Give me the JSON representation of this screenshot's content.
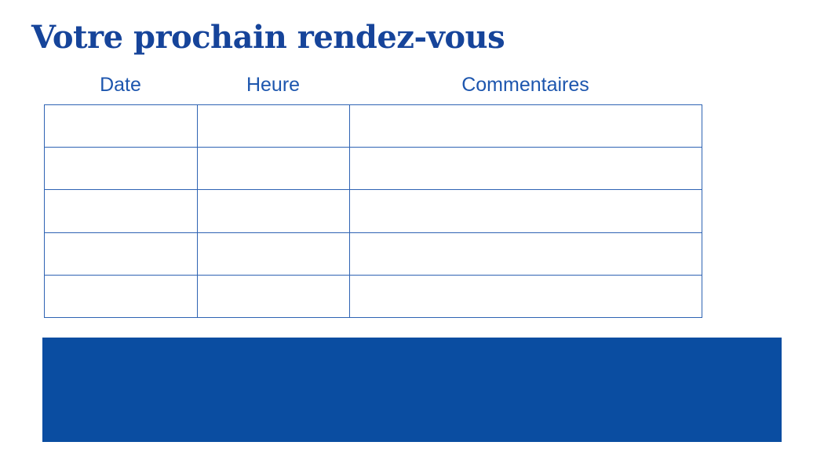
{
  "page": {
    "title": "Votre prochain rendez-vous"
  },
  "table": {
    "headers": [
      "Date",
      "Heure",
      "Commentaires"
    ],
    "rows": [
      [
        "",
        "",
        ""
      ],
      [
        "",
        "",
        ""
      ],
      [
        "",
        "",
        ""
      ],
      [
        "",
        "",
        ""
      ],
      [
        "",
        "",
        ""
      ]
    ]
  },
  "banner": {
    "text": ""
  },
  "colors": {
    "title": "#16449a",
    "header": "#1d56ae",
    "border": "#2e63b3",
    "banner": "#0a4da1",
    "bg": "#ffffff"
  }
}
